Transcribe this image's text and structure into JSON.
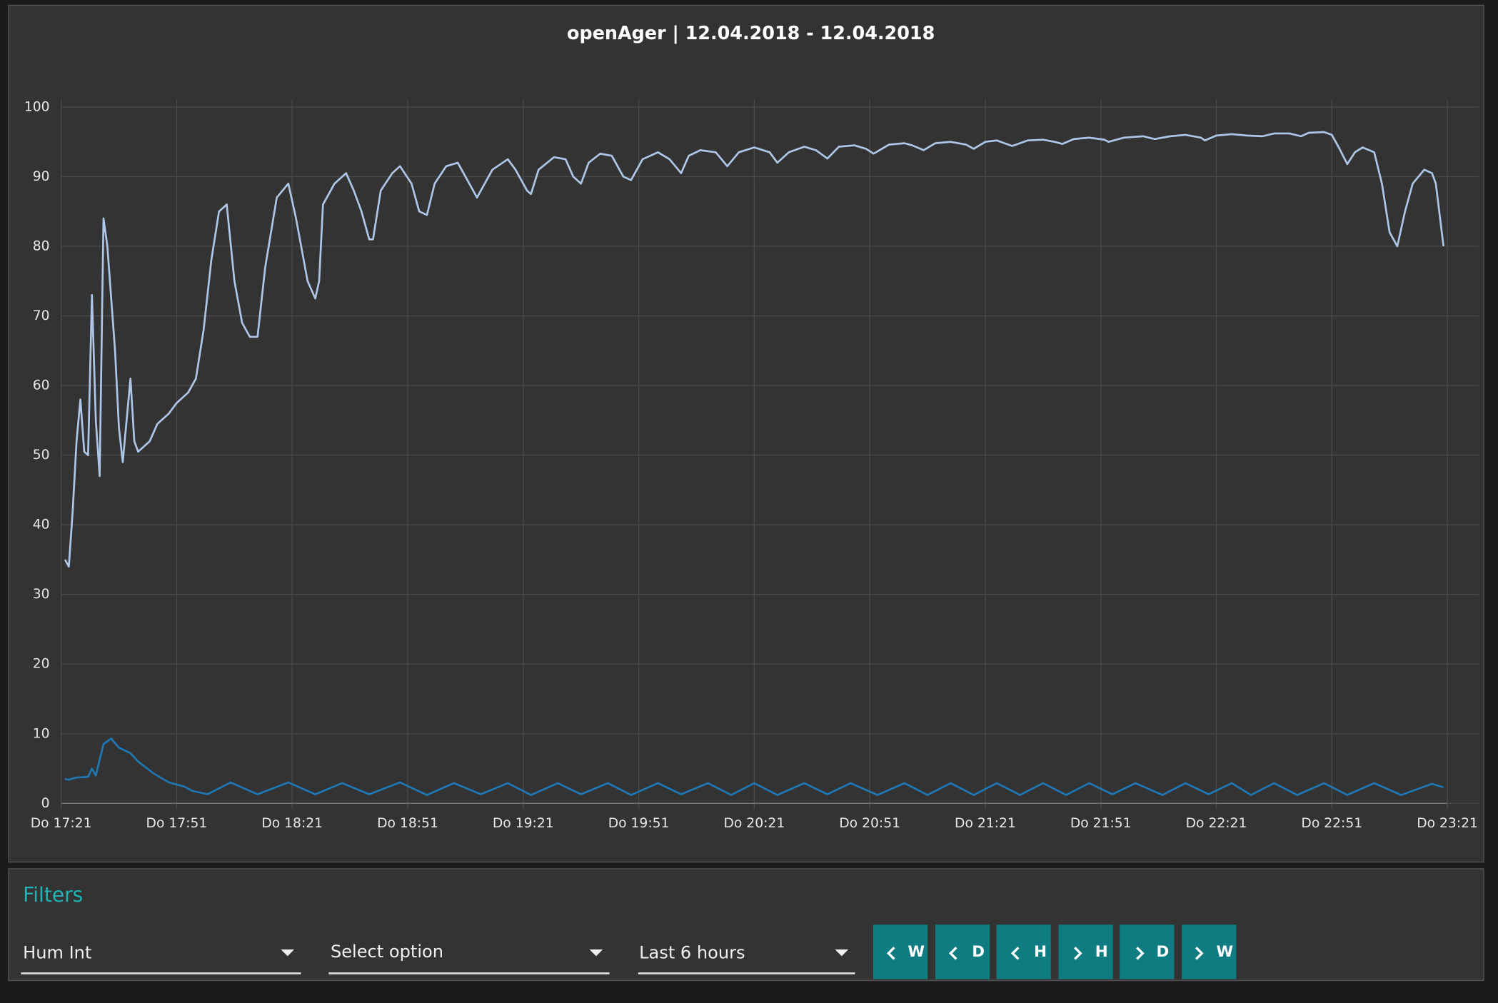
{
  "chart_data": {
    "type": "line",
    "title": "openAger | 12.04.2018 - 12.04.2018",
    "xlim": [
      0,
      360
    ],
    "xticks": [
      {
        "value": 0,
        "label": "Do 17:21"
      },
      {
        "value": 30,
        "label": "Do 17:51"
      },
      {
        "value": 60,
        "label": "Do 18:21"
      },
      {
        "value": 90,
        "label": "Do 18:51"
      },
      {
        "value": 120,
        "label": "Do 19:21"
      },
      {
        "value": 150,
        "label": "Do 19:51"
      },
      {
        "value": 180,
        "label": "Do 20:21"
      },
      {
        "value": 210,
        "label": "Do 20:51"
      },
      {
        "value": 240,
        "label": "Do 21:21"
      },
      {
        "value": 270,
        "label": "Do 21:51"
      },
      {
        "value": 300,
        "label": "Do 22:21"
      },
      {
        "value": 330,
        "label": "Do 22:51"
      },
      {
        "value": 360,
        "label": "Do 23:21"
      }
    ],
    "ylim": [
      0,
      100
    ],
    "yticks": [
      0,
      10,
      20,
      30,
      40,
      50,
      60,
      70,
      80,
      90,
      100
    ],
    "grid": true,
    "series": [
      {
        "color": "#aec7e8",
        "x": [
          1,
          2,
          3,
          4,
          5,
          6,
          7,
          8,
          9,
          10,
          11,
          12,
          14,
          15,
          16,
          18,
          19,
          20,
          23,
          25,
          28,
          30,
          33,
          35,
          37,
          39,
          41,
          43,
          45,
          47,
          49,
          51,
          53,
          56,
          59,
          61,
          64,
          66,
          67,
          68,
          71,
          74,
          76,
          78,
          80,
          81,
          83,
          86,
          88,
          91,
          93,
          95,
          97,
          100,
          103,
          105,
          108,
          109,
          112,
          116,
          118,
          121,
          122,
          124,
          128,
          131,
          133,
          135,
          137,
          140,
          143,
          146,
          148,
          151,
          155,
          158,
          161,
          163,
          166,
          170,
          173,
          176,
          180,
          184,
          186,
          189,
          193,
          196,
          199,
          202,
          206,
          209,
          211,
          215,
          219,
          221,
          224,
          227,
          231,
          235,
          237,
          240,
          243,
          247,
          251,
          255,
          258,
          260,
          263,
          267,
          271,
          272,
          276,
          281,
          284,
          288,
          292,
          296,
          297,
          300,
          304,
          308,
          312,
          315,
          319,
          322,
          324,
          328,
          330,
          332,
          334,
          336,
          338,
          341,
          343,
          345,
          347,
          349,
          351,
          354,
          356,
          357,
          359
        ],
        "values": [
          35,
          34,
          42,
          52,
          58,
          50.5,
          50,
          73,
          55,
          47,
          84,
          80,
          65,
          54,
          49,
          61,
          52,
          50.5,
          52,
          54.5,
          56,
          57.5,
          59,
          61,
          68,
          78,
          85,
          86,
          75,
          69,
          67,
          67,
          77,
          87,
          89,
          84,
          75,
          72.5,
          75,
          86,
          89,
          90.5,
          88,
          85,
          81,
          81,
          88,
          90.5,
          91.5,
          89,
          85,
          84.5,
          89,
          91.5,
          92,
          90,
          87,
          88,
          91,
          92.5,
          91,
          88,
          87.5,
          91,
          92.8,
          92.5,
          90,
          89,
          92,
          93.3,
          93,
          90,
          89.5,
          92.5,
          93.5,
          92.5,
          90.5,
          93,
          93.8,
          93.5,
          91.5,
          93.5,
          94.2,
          93.5,
          92,
          93.5,
          94.3,
          93.8,
          92.6,
          94.3,
          94.5,
          94,
          93.3,
          94.6,
          94.8,
          94.5,
          93.8,
          94.8,
          95,
          94.6,
          94,
          95,
          95.2,
          94.4,
          95.2,
          95.3,
          95,
          94.7,
          95.4,
          95.6,
          95.3,
          95,
          95.6,
          95.8,
          95.4,
          95.8,
          96,
          95.6,
          95.2,
          95.9,
          96.1,
          95.9,
          95.8,
          96.2,
          96.2,
          95.8,
          96.3,
          96.4,
          96,
          94,
          91.8,
          93.5,
          94.2,
          93.5,
          89,
          82,
          80,
          85,
          89,
          91,
          90.5,
          89,
          80
        ]
      },
      {
        "color": "#1f77b4",
        "x": [
          1,
          2,
          4,
          7,
          8,
          9,
          11,
          13,
          15,
          18,
          20,
          24,
          28,
          32,
          34,
          38,
          44,
          51,
          59,
          66,
          73,
          80,
          88,
          95,
          102,
          109,
          116,
          122,
          129,
          135,
          142,
          148,
          155,
          161,
          168,
          174,
          180,
          186,
          193,
          199,
          205,
          212,
          219,
          225,
          231,
          237,
          243,
          249,
          255,
          261,
          267,
          273,
          279,
          286,
          292,
          298,
          304,
          309,
          315,
          321,
          328,
          334,
          341,
          348,
          356,
          359
        ],
        "values": [
          3.5,
          3.4,
          3.7,
          3.8,
          5,
          4,
          8.5,
          9.3,
          8,
          7.2,
          6,
          4.3,
          3,
          2.4,
          1.8,
          1.3,
          3,
          1.3,
          3,
          1.3,
          2.9,
          1.3,
          3,
          1.2,
          2.9,
          1.3,
          2.9,
          1.2,
          2.9,
          1.3,
          2.9,
          1.2,
          2.9,
          1.3,
          2.9,
          1.2,
          2.9,
          1.2,
          2.9,
          1.3,
          2.9,
          1.2,
          2.9,
          1.2,
          2.9,
          1.2,
          2.9,
          1.2,
          2.9,
          1.2,
          2.9,
          1.3,
          2.9,
          1.2,
          2.9,
          1.3,
          2.9,
          1.2,
          2.9,
          1.2,
          2.9,
          1.2,
          2.9,
          1.2,
          2.8,
          2.3
        ]
      }
    ]
  },
  "filters": {
    "title": "Filters",
    "selects": [
      "Hum Int",
      "Select option",
      "Last 6 hours"
    ],
    "buttons": [
      "W",
      "D",
      "H",
      "H",
      "D",
      "W"
    ]
  }
}
